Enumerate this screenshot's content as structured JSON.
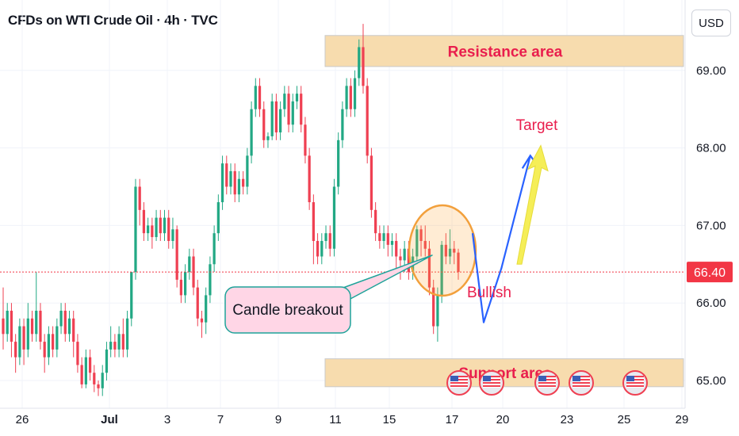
{
  "title": "CFDs on WTI Crude Oil · 4h · TVC",
  "currency": "USD",
  "colors": {
    "up": "#22a884",
    "down": "#ef4052",
    "annot_blue": "#2962ff",
    "annot_yellow": "#f5ee57",
    "zone": "#f7dcae",
    "price_tag": "#f23645",
    "text_red": "#e91e4d"
  },
  "chart_data": {
    "type": "candlestick",
    "ylim": [
      64.75,
      69.85
    ],
    "y_ticks": [
      "65.00",
      "66.00",
      "67.00",
      "68.00",
      "69.00"
    ],
    "x_ticks": [
      "26",
      "Jul",
      "3",
      "7",
      "9",
      "11",
      "15",
      "17",
      "20",
      "23",
      "25",
      "29"
    ],
    "last_price": "66.40",
    "candles": [
      [
        65.8,
        65.6,
        66.2,
        65.4
      ],
      [
        65.6,
        65.9,
        66.0,
        65.5
      ],
      [
        65.9,
        65.5,
        66.0,
        65.3
      ],
      [
        65.5,
        65.3,
        65.6,
        65.1
      ],
      [
        65.3,
        65.7,
        65.8,
        65.2
      ],
      [
        65.7,
        65.4,
        65.8,
        65.2
      ],
      [
        65.4,
        65.8,
        66.0,
        65.3
      ],
      [
        65.8,
        65.6,
        65.9,
        65.5
      ],
      [
        65.6,
        65.9,
        66.4,
        65.5
      ],
      [
        65.9,
        65.5,
        66.0,
        65.4
      ],
      [
        65.5,
        65.3,
        65.6,
        65.1
      ],
      [
        65.3,
        65.6,
        65.7,
        65.2
      ],
      [
        65.6,
        65.4,
        65.7,
        65.3
      ],
      [
        65.4,
        65.7,
        65.8,
        65.3
      ],
      [
        65.7,
        65.9,
        66.0,
        65.6
      ],
      [
        65.9,
        65.6,
        66.0,
        65.5
      ],
      [
        65.6,
        65.8,
        65.9,
        65.5
      ],
      [
        65.8,
        65.5,
        65.9,
        65.3
      ],
      [
        65.5,
        65.2,
        65.6,
        65.1
      ],
      [
        65.2,
        64.95,
        65.3,
        64.9
      ],
      [
        64.95,
        65.3,
        65.4,
        64.9
      ],
      [
        65.3,
        65.1,
        65.4,
        65.0
      ],
      [
        65.1,
        64.95,
        65.2,
        64.85
      ],
      [
        64.95,
        64.9,
        65.0,
        64.8
      ],
      [
        64.9,
        65.1,
        65.2,
        64.8
      ],
      [
        65.1,
        65.4,
        65.5,
        65.0
      ],
      [
        65.4,
        65.5,
        65.7,
        65.3
      ],
      [
        65.5,
        65.4,
        65.6,
        65.3
      ],
      [
        65.4,
        65.6,
        65.7,
        65.3
      ],
      [
        65.6,
        65.4,
        65.8,
        65.3
      ],
      [
        65.4,
        65.8,
        65.9,
        65.3
      ],
      [
        65.8,
        66.4,
        66.4,
        65.7
      ],
      [
        66.4,
        67.5,
        67.6,
        66.3
      ],
      [
        67.5,
        67.2,
        67.6,
        67.0
      ],
      [
        67.2,
        66.9,
        67.3,
        66.8
      ],
      [
        66.9,
        67.0,
        67.1,
        66.8
      ],
      [
        67.0,
        66.85,
        67.1,
        66.7
      ],
      [
        66.85,
        67.1,
        67.2,
        66.8
      ],
      [
        67.1,
        66.9,
        67.2,
        66.8
      ],
      [
        66.9,
        67.1,
        67.2,
        66.8
      ],
      [
        67.1,
        66.8,
        67.2,
        66.7
      ],
      [
        66.8,
        66.95,
        67.1,
        66.7
      ],
      [
        66.95,
        66.3,
        67.0,
        66.2
      ],
      [
        66.3,
        66.1,
        66.4,
        66.0
      ],
      [
        66.1,
        66.4,
        66.5,
        66.0
      ],
      [
        66.4,
        66.6,
        66.7,
        66.3
      ],
      [
        66.6,
        66.2,
        66.7,
        66.1
      ],
      [
        66.2,
        65.8,
        66.3,
        65.7
      ],
      [
        65.8,
        65.75,
        65.9,
        65.55
      ],
      [
        65.75,
        66.1,
        66.2,
        65.6
      ],
      [
        66.1,
        66.5,
        66.6,
        66.0
      ],
      [
        66.5,
        66.9,
        67.0,
        66.4
      ],
      [
        66.9,
        67.3,
        67.4,
        66.8
      ],
      [
        67.3,
        67.8,
        67.9,
        67.2
      ],
      [
        67.8,
        67.5,
        67.9,
        67.4
      ],
      [
        67.5,
        67.7,
        67.8,
        67.4
      ],
      [
        67.7,
        67.4,
        67.8,
        67.3
      ],
      [
        67.4,
        67.6,
        67.7,
        67.3
      ],
      [
        67.6,
        67.5,
        67.7,
        67.4
      ],
      [
        67.5,
        67.9,
        68.0,
        67.4
      ],
      [
        67.9,
        68.5,
        68.6,
        67.8
      ],
      [
        68.5,
        68.8,
        68.9,
        68.4
      ],
      [
        68.8,
        68.5,
        68.9,
        68.4
      ],
      [
        68.5,
        68.1,
        68.6,
        68.0
      ],
      [
        68.1,
        68.15,
        68.2,
        68.0
      ],
      [
        68.15,
        68.6,
        68.7,
        68.1
      ],
      [
        68.6,
        68.2,
        68.7,
        68.1
      ],
      [
        68.2,
        68.5,
        68.6,
        68.1
      ],
      [
        68.5,
        68.7,
        68.8,
        68.4
      ],
      [
        68.7,
        68.3,
        68.8,
        68.2
      ],
      [
        68.3,
        68.6,
        68.7,
        68.2
      ],
      [
        68.6,
        68.7,
        68.8,
        68.5
      ],
      [
        68.7,
        68.3,
        68.8,
        68.2
      ],
      [
        68.3,
        67.9,
        68.4,
        67.8
      ],
      [
        67.9,
        67.3,
        68.0,
        67.2
      ],
      [
        67.3,
        66.8,
        67.4,
        66.5
      ],
      [
        66.8,
        66.6,
        66.9,
        66.5
      ],
      [
        66.6,
        66.8,
        66.9,
        66.5
      ],
      [
        66.8,
        66.9,
        67.0,
        66.7
      ],
      [
        66.9,
        66.7,
        67.0,
        66.6
      ],
      [
        66.7,
        67.5,
        67.6,
        66.6
      ],
      [
        67.5,
        68.1,
        68.2,
        67.4
      ],
      [
        68.1,
        68.5,
        68.6,
        68.0
      ],
      [
        68.5,
        68.8,
        68.9,
        68.4
      ],
      [
        68.8,
        68.5,
        68.9,
        68.4
      ],
      [
        68.5,
        68.9,
        69.0,
        68.4
      ],
      [
        68.9,
        69.3,
        69.4,
        68.8
      ],
      [
        69.3,
        68.8,
        69.6,
        68.7
      ],
      [
        68.8,
        67.9,
        68.9,
        67.8
      ],
      [
        67.9,
        67.2,
        68.0,
        67.1
      ],
      [
        67.2,
        66.9,
        67.3,
        66.8
      ],
      [
        66.9,
        66.8,
        67.0,
        66.7
      ],
      [
        66.8,
        66.9,
        67.0,
        66.7
      ],
      [
        66.9,
        66.75,
        67.0,
        66.6
      ],
      [
        66.75,
        66.8,
        66.9,
        66.6
      ],
      [
        66.8,
        66.6,
        66.9,
        66.4
      ],
      [
        66.6,
        66.55,
        66.7,
        66.3
      ],
      [
        66.55,
        66.7,
        66.8,
        66.4
      ],
      [
        66.7,
        66.4,
        66.8,
        66.3
      ],
      [
        66.4,
        66.6,
        66.7,
        66.3
      ],
      [
        66.6,
        66.95,
        67.0,
        66.5
      ],
      [
        66.95,
        66.8,
        67.0,
        66.6
      ],
      [
        66.8,
        66.7,
        67.0,
        66.6
      ],
      [
        66.7,
        66.2,
        66.8,
        66.1
      ],
      [
        66.2,
        65.7,
        66.3,
        65.6
      ],
      [
        65.7,
        66.1,
        66.2,
        65.5
      ],
      [
        66.1,
        66.75,
        66.8,
        66.0
      ],
      [
        66.75,
        66.6,
        66.9,
        66.5
      ],
      [
        66.6,
        66.7,
        66.95,
        66.5
      ],
      [
        66.7,
        66.65,
        66.8,
        66.5
      ],
      [
        66.65,
        66.4,
        66.7,
        66.3
      ]
    ],
    "annotations": {
      "resistance_label": "Resistance area",
      "support_label": "Support area",
      "resistance_zone": [
        69.05,
        69.45
      ],
      "support_zone": [
        64.92,
        65.28
      ],
      "callout": "Candle breakout",
      "bullish_label": "Bullish",
      "target_label": "Target",
      "projection_path": [
        [
          0,
          66.9
        ],
        [
          0.5,
          65.75
        ],
        [
          1.3,
          66.45
        ],
        [
          2.6,
          67.9
        ]
      ],
      "target_arrow": [
        [
          0,
          66.5
        ],
        [
          1.2,
          67.95
        ]
      ]
    }
  }
}
